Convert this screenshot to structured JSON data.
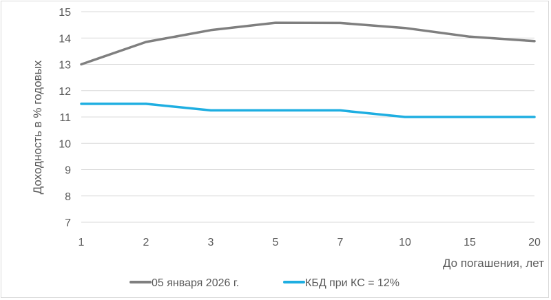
{
  "chart_data": {
    "type": "line",
    "title": "",
    "xlabel": "До погашения, лет",
    "ylabel": "Доходность в % годовых",
    "categories": [
      "1",
      "2",
      "3",
      "5",
      "7",
      "10",
      "15",
      "20"
    ],
    "ylim": [
      7,
      15
    ],
    "yticks": [
      7,
      8,
      9,
      10,
      11,
      12,
      13,
      14,
      15
    ],
    "grid": true,
    "legend_position": "bottom",
    "series": [
      {
        "name": "05 января 2026 г.",
        "color": "#7f7f7f",
        "values": [
          13.0,
          13.85,
          14.3,
          14.58,
          14.57,
          14.38,
          14.05,
          13.88
        ]
      },
      {
        "name": "КБД при КС = 12%",
        "color": "#1eaee1",
        "values": [
          11.5,
          11.5,
          11.25,
          11.25,
          11.25,
          11.0,
          11.0,
          11.0
        ]
      }
    ]
  }
}
